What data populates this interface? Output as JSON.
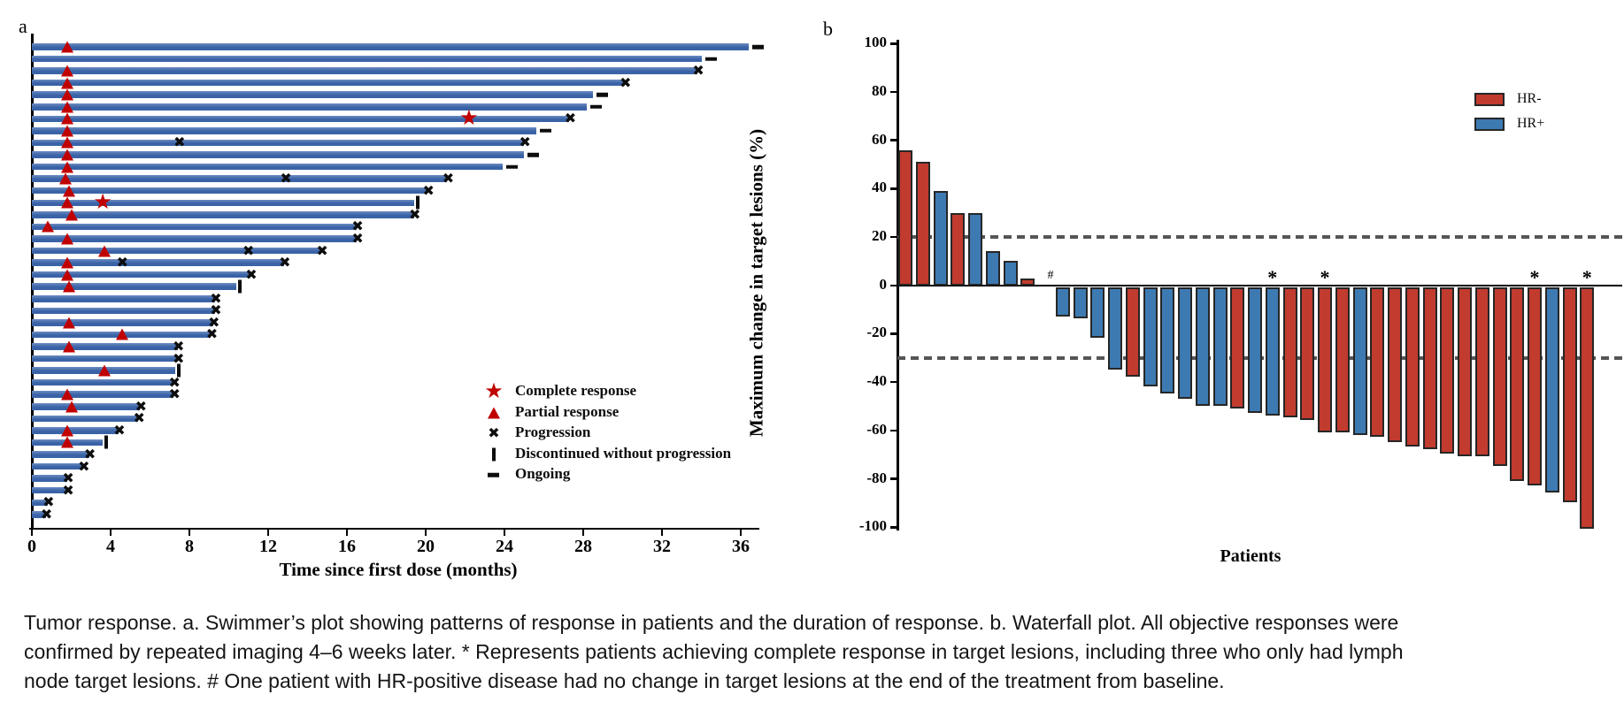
{
  "colors": {
    "swimmer_bar": "#3a63a7",
    "hr_negative": "#c13b2e",
    "hr_positive": "#3d7ab2",
    "response_marker_red": "#c00000",
    "axis_black": "#000000",
    "reference_dash_gray": "#555555"
  },
  "chart_data": [
    {
      "type": "bar",
      "subtype": "swimmer",
      "panel_label": "a",
      "xlabel": "Time since first dose (months)",
      "x_ticks": [
        0,
        4,
        8,
        12,
        16,
        20,
        24,
        28,
        32,
        36
      ],
      "xlim": [
        0,
        37
      ],
      "legend": [
        {
          "symbol": "star",
          "label": "Complete response"
        },
        {
          "symbol": "triangle",
          "label": "Partial response"
        },
        {
          "symbol": "x",
          "label": "Progression"
        },
        {
          "symbol": "vertical-bar",
          "label": "Discontinued without progression"
        },
        {
          "symbol": "dash",
          "label": "Ongoing"
        }
      ],
      "patients": [
        {
          "duration": 36.4,
          "partial_response_at": [
            1.8
          ],
          "end": "ongoing"
        },
        {
          "duration": 34.0,
          "partial_response_at": [],
          "end": "ongoing"
        },
        {
          "duration": 33.8,
          "partial_response_at": [
            1.8
          ],
          "end": "progression"
        },
        {
          "duration": 30.1,
          "partial_response_at": [
            1.8
          ],
          "end": "progression"
        },
        {
          "duration": 28.5,
          "partial_response_at": [
            1.8
          ],
          "end": "ongoing"
        },
        {
          "duration": 28.2,
          "partial_response_at": [
            1.8
          ],
          "end": "ongoing"
        },
        {
          "duration": 27.3,
          "partial_response_at": [
            1.8
          ],
          "complete_response_at": [
            22.2
          ],
          "end": "progression"
        },
        {
          "duration": 25.6,
          "partial_response_at": [
            1.8
          ],
          "end": "ongoing"
        },
        {
          "duration": 25.0,
          "partial_response_at": [
            1.8
          ],
          "progression_at": [
            7.5
          ],
          "end": "progression"
        },
        {
          "duration": 25.0,
          "partial_response_at": [
            1.8
          ],
          "end": "ongoing"
        },
        {
          "duration": 23.9,
          "partial_response_at": [
            1.8
          ],
          "end": "ongoing"
        },
        {
          "duration": 21.1,
          "partial_response_at": [
            1.7
          ],
          "progression_at": [
            12.9
          ],
          "end": "progression"
        },
        {
          "duration": 20.1,
          "partial_response_at": [
            1.9
          ],
          "end": "progression"
        },
        {
          "duration": 19.4,
          "partial_response_at": [
            1.8
          ],
          "complete_response_at": [
            3.6
          ],
          "end": "discontinued"
        },
        {
          "duration": 19.4,
          "partial_response_at": [
            2.0
          ],
          "end": "progression"
        },
        {
          "duration": 16.5,
          "partial_response_at": [
            0.8
          ],
          "end": "progression"
        },
        {
          "duration": 16.5,
          "partial_response_at": [
            1.8
          ],
          "end": "progression"
        },
        {
          "duration": 14.7,
          "partial_response_at": [
            3.7
          ],
          "progression_at": [
            11.0
          ],
          "end": "progression"
        },
        {
          "duration": 12.8,
          "partial_response_at": [
            1.8
          ],
          "progression_at": [
            4.6
          ],
          "end": "progression"
        },
        {
          "duration": 11.1,
          "partial_response_at": [
            1.8
          ],
          "end": "progression"
        },
        {
          "duration": 10.4,
          "partial_response_at": [
            1.9
          ],
          "end": "discontinued"
        },
        {
          "duration": 9.3,
          "partial_response_at": [],
          "end": "progression"
        },
        {
          "duration": 9.3,
          "partial_response_at": [],
          "end": "progression"
        },
        {
          "duration": 9.2,
          "partial_response_at": [
            1.9
          ],
          "end": "progression"
        },
        {
          "duration": 9.1,
          "partial_response_at": [
            4.6
          ],
          "end": "progression"
        },
        {
          "duration": 7.4,
          "partial_response_at": [
            1.9
          ],
          "end": "progression"
        },
        {
          "duration": 7.4,
          "partial_response_at": [],
          "end": "progression"
        },
        {
          "duration": 7.3,
          "partial_response_at": [
            3.7
          ],
          "end": "discontinued"
        },
        {
          "duration": 7.2,
          "partial_response_at": [],
          "end": "progression"
        },
        {
          "duration": 7.2,
          "partial_response_at": [
            1.8
          ],
          "end": "progression"
        },
        {
          "duration": 5.5,
          "partial_response_at": [
            2.0
          ],
          "end": "progression"
        },
        {
          "duration": 5.4,
          "partial_response_at": [],
          "end": "progression"
        },
        {
          "duration": 4.4,
          "partial_response_at": [
            1.8
          ],
          "end": "progression"
        },
        {
          "duration": 3.6,
          "partial_response_at": [
            1.8
          ],
          "end": "discontinued"
        },
        {
          "duration": 2.9,
          "partial_response_at": [],
          "end": "progression"
        },
        {
          "duration": 2.6,
          "partial_response_at": [],
          "end": "progression"
        },
        {
          "duration": 1.8,
          "partial_response_at": [],
          "end": "progression"
        },
        {
          "duration": 1.8,
          "partial_response_at": [],
          "end": "progression"
        },
        {
          "duration": 0.8,
          "partial_response_at": [],
          "end": "progression"
        },
        {
          "duration": 0.7,
          "partial_response_at": [],
          "end": "progression"
        }
      ]
    },
    {
      "type": "bar",
      "subtype": "waterfall",
      "panel_label": "b",
      "ylabel": "Maximum change in target lesions (%)",
      "xlabel": "Patients",
      "y_ticks": [
        100,
        80,
        60,
        40,
        20,
        0,
        -20,
        -40,
        -60,
        -80,
        -100
      ],
      "ylim": [
        -100,
        100
      ],
      "reference_lines": [
        20,
        -30
      ],
      "legend": [
        {
          "label": "HR-",
          "color": "#c13b2e"
        },
        {
          "label": "HR+",
          "color": "#3d7ab2"
        }
      ],
      "bars": [
        {
          "value": 56,
          "group": "HR-"
        },
        {
          "value": 51,
          "group": "HR-"
        },
        {
          "value": 39,
          "group": "HR+"
        },
        {
          "value": 30,
          "group": "HR-"
        },
        {
          "value": 30,
          "group": "HR+"
        },
        {
          "value": 14,
          "group": "HR+"
        },
        {
          "value": 10,
          "group": "HR+"
        },
        {
          "value": 3,
          "group": "HR-"
        },
        {
          "value": 0,
          "group": "HR+",
          "annotation": "#"
        },
        {
          "value": -12,
          "group": "HR+"
        },
        {
          "value": -13,
          "group": "HR+"
        },
        {
          "value": -21,
          "group": "HR+"
        },
        {
          "value": -34,
          "group": "HR+"
        },
        {
          "value": -37,
          "group": "HR-"
        },
        {
          "value": -41,
          "group": "HR+"
        },
        {
          "value": -44,
          "group": "HR+"
        },
        {
          "value": -46,
          "group": "HR+"
        },
        {
          "value": -49,
          "group": "HR+"
        },
        {
          "value": -49,
          "group": "HR+"
        },
        {
          "value": -50,
          "group": "HR-"
        },
        {
          "value": -52,
          "group": "HR+"
        },
        {
          "value": -53,
          "group": "HR+",
          "annotation": "*"
        },
        {
          "value": -54,
          "group": "HR-"
        },
        {
          "value": -55,
          "group": "HR-"
        },
        {
          "value": -60,
          "group": "HR-",
          "annotation": "*"
        },
        {
          "value": -60,
          "group": "HR-"
        },
        {
          "value": -61,
          "group": "HR+"
        },
        {
          "value": -62,
          "group": "HR-"
        },
        {
          "value": -64,
          "group": "HR-"
        },
        {
          "value": -66,
          "group": "HR-"
        },
        {
          "value": -67,
          "group": "HR-"
        },
        {
          "value": -69,
          "group": "HR-"
        },
        {
          "value": -70,
          "group": "HR-"
        },
        {
          "value": -70,
          "group": "HR-"
        },
        {
          "value": -74,
          "group": "HR-"
        },
        {
          "value": -80,
          "group": "HR-"
        },
        {
          "value": -82,
          "group": "HR-",
          "annotation": "*"
        },
        {
          "value": -85,
          "group": "HR+"
        },
        {
          "value": -89,
          "group": "HR-"
        },
        {
          "value": -100,
          "group": "HR-",
          "annotation": "*"
        }
      ]
    }
  ],
  "caption": {
    "lines": [
      "Tumor response. a. Swimmer’s plot showing patterns of response in patients and the duration of response. b. Waterfall plot. All objective responses were",
      "confirmed by repeated imaging 4–6 weeks later. * Represents patients achieving complete response in target lesions, including three who only had lymph",
      "node target lesions. # One patient with HR-positive disease had no change in target lesions at the end of the treatment from baseline."
    ]
  }
}
